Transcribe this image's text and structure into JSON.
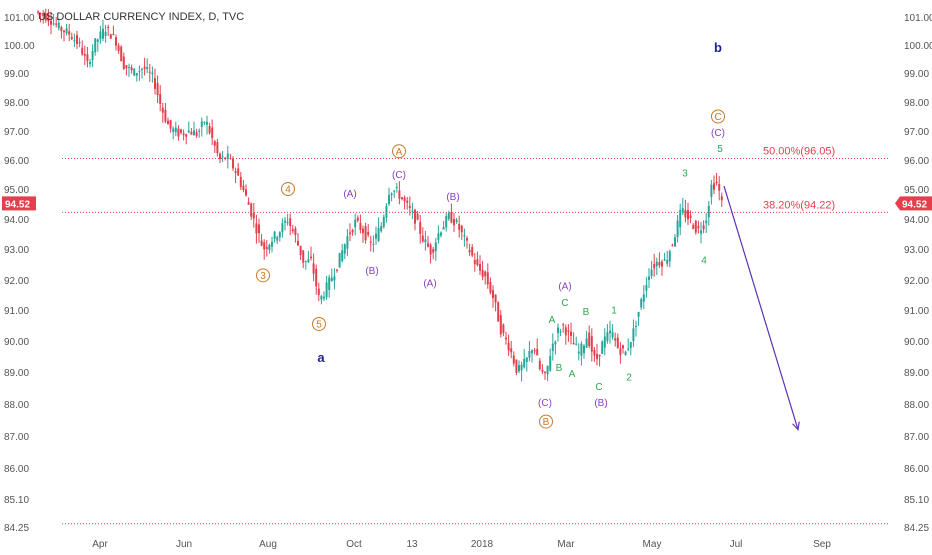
{
  "chart_data": {
    "type": "candlestick",
    "title": "US DOLLAR CURRENCY INDEX, D, TVC",
    "y_axis": {
      "ticks": [
        101.0,
        100.0,
        99.0,
        98.0,
        97.0,
        96.0,
        95.0,
        94.0,
        93.0,
        92.0,
        91.0,
        90.0,
        89.0,
        88.0,
        87.0,
        86.0,
        85.1,
        84.25
      ],
      "tick_labels": [
        "101.00",
        "100.00",
        "99.00",
        "98.00",
        "97.00",
        "96.00",
        "95.00",
        "94.00",
        "93.00",
        "92.00",
        "91.00",
        "90.00",
        "89.00",
        "88.00",
        "87.00",
        "86.00",
        "85.10",
        "84.25"
      ],
      "range": [
        84.25,
        101.4
      ]
    },
    "x_axis": {
      "labels": [
        {
          "text": "Apr",
          "x": 100
        },
        {
          "text": "Jun",
          "x": 184
        },
        {
          "text": "Aug",
          "x": 268
        },
        {
          "text": "Oct",
          "x": 354
        },
        {
          "text": "13",
          "x": 412
        },
        {
          "text": "2018",
          "x": 482
        },
        {
          "text": "Mar",
          "x": 566
        },
        {
          "text": "May",
          "x": 652
        },
        {
          "text": "Jul",
          "x": 736
        },
        {
          "text": "Sep",
          "x": 822
        }
      ],
      "range": [
        36,
        890
      ]
    },
    "price_badge": {
      "text": "94.52",
      "value": 94.52,
      "color": "#e53e4d"
    },
    "levels": [
      {
        "label": "50.00%(96.05)",
        "value": 96.05,
        "color": "#e53e4d"
      },
      {
        "label": "38.20%(94.22)",
        "value": 94.22,
        "color": "#e53e4d"
      },
      {
        "label": "",
        "value": 84.35,
        "color": "#e53e4d"
      }
    ],
    "price_path": [
      [
        38,
        101.2
      ],
      [
        50,
        101.0
      ],
      [
        62,
        100.6
      ],
      [
        72,
        100.4
      ],
      [
        82,
        100.0
      ],
      [
        90,
        99.3
      ],
      [
        98,
        100.1
      ],
      [
        108,
        100.6
      ],
      [
        118,
        100.2
      ],
      [
        126,
        99.3
      ],
      [
        136,
        99.0
      ],
      [
        146,
        99.2
      ],
      [
        156,
        98.8
      ],
      [
        164,
        97.8
      ],
      [
        172,
        97.1
      ],
      [
        182,
        96.9
      ],
      [
        192,
        97.0
      ],
      [
        200,
        96.9
      ],
      [
        208,
        97.4
      ],
      [
        214,
        96.8
      ],
      [
        222,
        96.0
      ],
      [
        230,
        96.1
      ],
      [
        240,
        95.5
      ],
      [
        250,
        94.6
      ],
      [
        258,
        93.8
      ],
      [
        266,
        93.0
      ],
      [
        274,
        93.3
      ],
      [
        282,
        93.6
      ],
      [
        290,
        94.0
      ],
      [
        298,
        93.4
      ],
      [
        306,
        92.6
      ],
      [
        314,
        92.6
      ],
      [
        322,
        91.3
      ],
      [
        330,
        91.8
      ],
      [
        340,
        92.5
      ],
      [
        350,
        93.4
      ],
      [
        358,
        93.9
      ],
      [
        366,
        93.6
      ],
      [
        374,
        93.1
      ],
      [
        384,
        93.8
      ],
      [
        392,
        95.0
      ],
      [
        400,
        94.9
      ],
      [
        410,
        94.4
      ],
      [
        418,
        94.0
      ],
      [
        426,
        93.3
      ],
      [
        434,
        92.9
      ],
      [
        442,
        93.6
      ],
      [
        452,
        94.1
      ],
      [
        460,
        93.8
      ],
      [
        470,
        93.1
      ],
      [
        480,
        92.4
      ],
      [
        488,
        92.1
      ],
      [
        496,
        91.4
      ],
      [
        504,
        90.3
      ],
      [
        512,
        89.8
      ],
      [
        520,
        89.0
      ],
      [
        528,
        89.3
      ],
      [
        536,
        89.9
      ],
      [
        542,
        89.1
      ],
      [
        548,
        88.8
      ],
      [
        554,
        89.8
      ],
      [
        560,
        90.3
      ],
      [
        566,
        90.5
      ],
      [
        574,
        90.0
      ],
      [
        582,
        89.6
      ],
      [
        590,
        90.2
      ],
      [
        598,
        89.3
      ],
      [
        606,
        90.0
      ],
      [
        614,
        90.3
      ],
      [
        620,
        89.8
      ],
      [
        628,
        89.6
      ],
      [
        636,
        90.3
      ],
      [
        644,
        91.3
      ],
      [
        652,
        92.3
      ],
      [
        660,
        92.6
      ],
      [
        668,
        92.6
      ],
      [
        676,
        93.3
      ],
      [
        684,
        94.3
      ],
      [
        692,
        94.0
      ],
      [
        700,
        93.6
      ],
      [
        708,
        93.9
      ],
      [
        714,
        95.1
      ],
      [
        720,
        95.2
      ],
      [
        724,
        94.52
      ]
    ],
    "projection": {
      "from": [
        724,
        95.1
      ],
      "to": [
        798,
        87.2
      ],
      "color": "#5b33b5"
    },
    "annotations": [
      {
        "text": "b",
        "x": 718,
        "v": 99.9,
        "style": "letter",
        "color": "#1f1f8f"
      },
      {
        "text": "a",
        "x": 321,
        "v": 89.45,
        "style": "letter",
        "color": "#1f1f8f"
      },
      {
        "text": "C",
        "x": 718,
        "v": 97.5,
        "style": "circle",
        "color": "#c77a2a"
      },
      {
        "text": "A",
        "x": 399,
        "v": 96.3,
        "style": "circle",
        "color": "#c77a2a"
      },
      {
        "text": "B",
        "x": 546,
        "v": 87.45,
        "style": "circle",
        "color": "#c77a2a"
      },
      {
        "text": "3",
        "x": 263,
        "v": 92.15,
        "style": "circle",
        "color": "#c77a2a"
      },
      {
        "text": "4",
        "x": 288,
        "v": 95.0,
        "style": "circle",
        "color": "#c77a2a"
      },
      {
        "text": "5",
        "x": 319,
        "v": 90.55,
        "style": "circle",
        "color": "#c77a2a"
      },
      {
        "text": "(C)",
        "x": 718,
        "v": 96.95,
        "style": "plain",
        "color": "#8a3fbf"
      },
      {
        "text": "(A)",
        "x": 350,
        "v": 94.85,
        "style": "plain",
        "color": "#8a3fbf"
      },
      {
        "text": "(C)",
        "x": 399,
        "v": 95.5,
        "style": "plain",
        "color": "#8a3fbf"
      },
      {
        "text": "(B)",
        "x": 372,
        "v": 92.3,
        "style": "plain",
        "color": "#8a3fbf"
      },
      {
        "text": "(B)",
        "x": 453,
        "v": 94.75,
        "style": "plain",
        "color": "#8a3fbf"
      },
      {
        "text": "(A)",
        "x": 430,
        "v": 91.9,
        "style": "plain",
        "color": "#8a3fbf"
      },
      {
        "text": "(A)",
        "x": 565,
        "v": 91.8,
        "style": "plain",
        "color": "#8a3fbf"
      },
      {
        "text": "(C)",
        "x": 545,
        "v": 88.05,
        "style": "plain",
        "color": "#8a3fbf"
      },
      {
        "text": "(B)",
        "x": 601,
        "v": 88.05,
        "style": "plain",
        "color": "#8a3fbf"
      },
      {
        "text": "5",
        "x": 720,
        "v": 96.4,
        "style": "plain",
        "color": "#2fa84f"
      },
      {
        "text": "3",
        "x": 685,
        "v": 95.55,
        "style": "plain",
        "color": "#2fa84f"
      },
      {
        "text": "4",
        "x": 704,
        "v": 92.65,
        "style": "plain",
        "color": "#2fa84f"
      },
      {
        "text": "A",
        "x": 552,
        "v": 90.7,
        "style": "plain",
        "color": "#2fa84f"
      },
      {
        "text": "C",
        "x": 565,
        "v": 91.25,
        "style": "plain",
        "color": "#2fa84f"
      },
      {
        "text": "B",
        "x": 586,
        "v": 90.95,
        "style": "plain",
        "color": "#2fa84f"
      },
      {
        "text": "1",
        "x": 614,
        "v": 91.0,
        "style": "plain",
        "color": "#2fa84f"
      },
      {
        "text": "B",
        "x": 559,
        "v": 89.15,
        "style": "plain",
        "color": "#2fa84f"
      },
      {
        "text": "A",
        "x": 572,
        "v": 88.95,
        "style": "plain",
        "color": "#2fa84f"
      },
      {
        "text": "C",
        "x": 599,
        "v": 88.55,
        "style": "plain",
        "color": "#2fa84f"
      },
      {
        "text": "2",
        "x": 629,
        "v": 88.85,
        "style": "plain",
        "color": "#2fa84f"
      }
    ],
    "colors": {
      "up": "#26a69a",
      "down": "#e53e4d",
      "axis_text": "#555555",
      "tick_bg": "#ffffff"
    }
  }
}
